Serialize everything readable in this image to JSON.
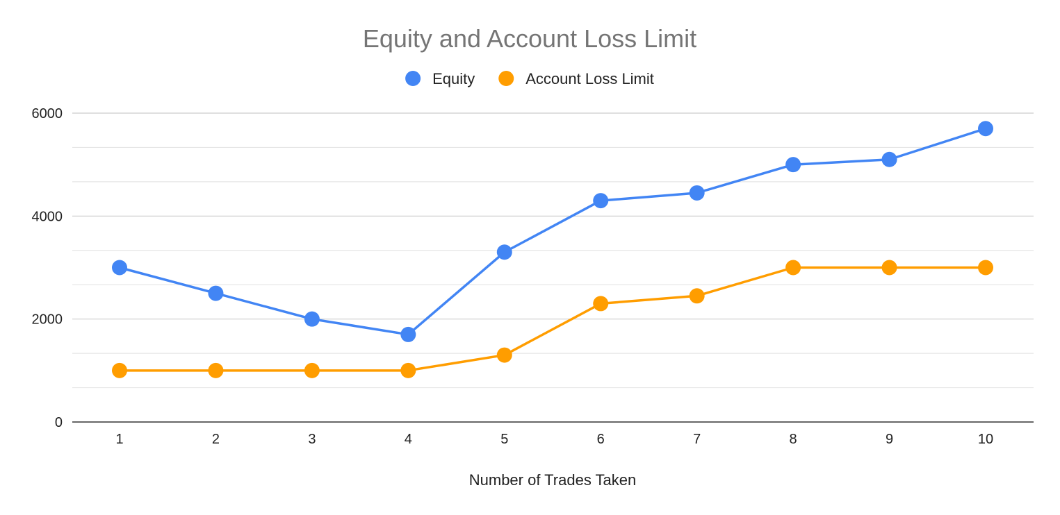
{
  "chart_data": {
    "type": "line",
    "title": "Equity and Account Loss Limit",
    "xlabel": "Number of Trades Taken",
    "ylabel": "",
    "categories": [
      "1",
      "2",
      "3",
      "4",
      "5",
      "6",
      "7",
      "8",
      "9",
      "10"
    ],
    "series": [
      {
        "name": "Equity",
        "color": "#4285f4",
        "values": [
          3000,
          2500,
          2000,
          1700,
          3300,
          4300,
          4450,
          5000,
          5100,
          5700
        ]
      },
      {
        "name": "Account Loss Limit",
        "color": "#ff9d00",
        "values": [
          1000,
          1000,
          1000,
          1000,
          1300,
          2300,
          2450,
          3000,
          3000,
          3000
        ]
      }
    ],
    "ylim": [
      0,
      6000
    ],
    "y_major_ticks": [
      0,
      2000,
      4000,
      6000
    ],
    "y_minor_step": 666.67,
    "grid": true,
    "legend": "top-center",
    "markers": true
  }
}
